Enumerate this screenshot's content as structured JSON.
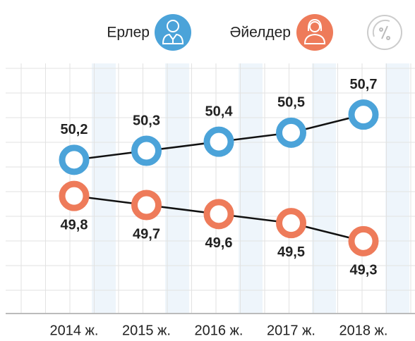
{
  "chart_data": {
    "type": "line",
    "categories": [
      "2014 ж.",
      "2015 ж.",
      "2016 ж.",
      "2017 ж.",
      "2018 ж."
    ],
    "series": [
      {
        "name": "Ерлер",
        "color": "#4ba3d9",
        "values": [
          50.2,
          50.3,
          50.4,
          50.5,
          50.7
        ],
        "value_labels": [
          "50,2",
          "50,3",
          "50,4",
          "50,5",
          "50,7"
        ]
      },
      {
        "name": "Әйелдер",
        "color": "#ee7b5a",
        "values": [
          49.8,
          49.7,
          49.6,
          49.5,
          49.3
        ],
        "value_labels": [
          "49,8",
          "49,7",
          "49,6",
          "49,5",
          "49,3"
        ]
      }
    ],
    "ylim": [
      48.5,
      51.5
    ]
  }
}
